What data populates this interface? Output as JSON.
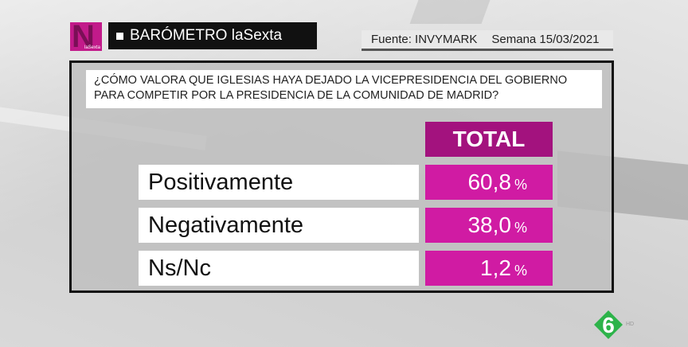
{
  "header": {
    "logo_letter": "N",
    "logo_small_text": "laSexta",
    "title": "BARÓMETRO laSexta",
    "source": "Fuente: INVYMARK",
    "week": "Semana 15/03/2021"
  },
  "question": "¿CÓMO VALORA QUE IGLESIAS HAYA DEJADO LA VICEPRESIDENCIA DEL GOBIERNO PARA COMPETIR POR LA PRESIDENCIA DE LA COMUNIDAD DE MADRID?",
  "colors": {
    "header_magenta": "#a3127e",
    "value_magenta": "#d01ba3",
    "logo_green": "#2db34a"
  },
  "chart_data": {
    "type": "table",
    "title": "¿CÓMO VALORA QUE IGLESIAS HAYA DEJADO LA VICEPRESIDENCIA DEL GOBIERNO PARA COMPETIR POR LA PRESIDENCIA DE LA COMUNIDAD DE MADRID?",
    "column_header": "TOTAL",
    "unit": "%",
    "categories": [
      "Positivamente",
      "Negativamente",
      "Ns/Nc"
    ],
    "values": [
      60.8,
      38.0,
      1.2
    ],
    "display_values": [
      "60,8",
      "38,0",
      "1,2"
    ]
  },
  "channel_logo": {
    "label": "HD"
  }
}
